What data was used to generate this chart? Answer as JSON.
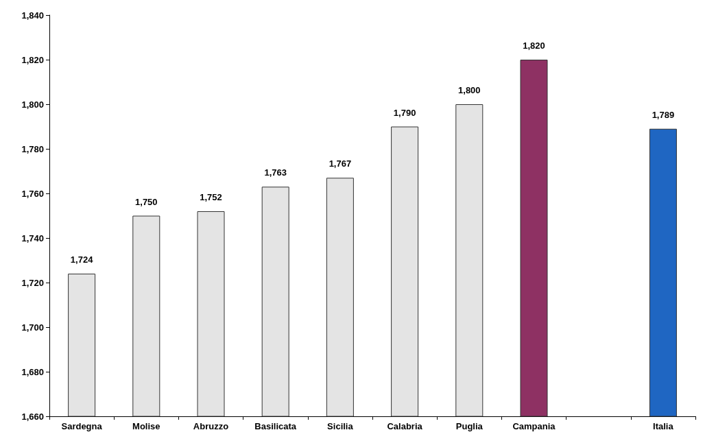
{
  "chart_data": {
    "type": "bar",
    "categories": [
      "Sardegna",
      "Molise",
      "Abruzzo",
      "Basilicata",
      "Sicilia",
      "Calabria",
      "Puglia",
      "Campania",
      null,
      "Italia"
    ],
    "values": [
      1724,
      1750,
      1752,
      1763,
      1767,
      1790,
      1800,
      1820,
      null,
      1789
    ],
    "colors": [
      "#e4e4e4",
      "#e4e4e4",
      "#e4e4e4",
      "#e4e4e4",
      "#e4e4e4",
      "#e4e4e4",
      "#e4e4e4",
      "#8e3163",
      "#e4e4e4",
      "#1f66c2"
    ],
    "value_labels": [
      "1,724",
      "1,750",
      "1,752",
      "1,763",
      "1,767",
      "1,790",
      "1,800",
      "1,820",
      null,
      "1,789"
    ],
    "ylim": [
      1660,
      1840
    ],
    "yticks": [
      {
        "value": 1660,
        "label": "1,660"
      },
      {
        "value": 1680,
        "label": "1,680"
      },
      {
        "value": 1700,
        "label": "1,700"
      },
      {
        "value": 1720,
        "label": "1,720"
      },
      {
        "value": 1740,
        "label": "1,740"
      },
      {
        "value": 1760,
        "label": "1,760"
      },
      {
        "value": 1780,
        "label": "1,780"
      },
      {
        "value": 1800,
        "label": "1,800"
      },
      {
        "value": 1820,
        "label": "1,820"
      },
      {
        "value": 1840,
        "label": "1,840"
      }
    ]
  }
}
